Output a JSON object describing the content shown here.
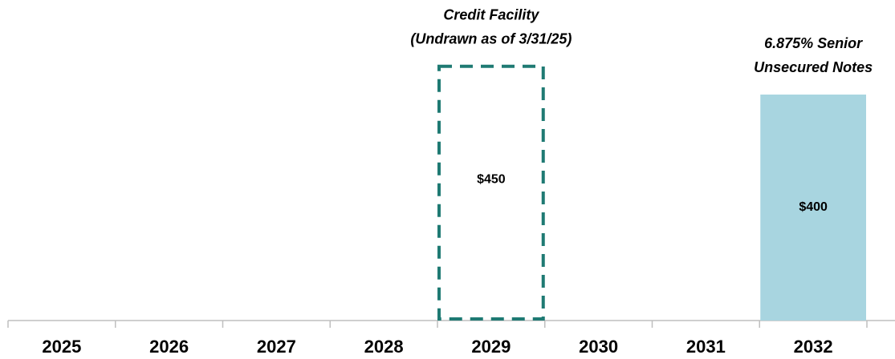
{
  "chart_data": {
    "type": "bar",
    "categories": [
      "2025",
      "2026",
      "2027",
      "2028",
      "2029",
      "2030",
      "2031",
      "2032"
    ],
    "series": [
      {
        "name": [
          "Credit Facility",
          "(Undrawn as of 3/31/25)"
        ],
        "color": "#1f7a73",
        "style": "dashed",
        "values": [
          null,
          null,
          null,
          null,
          450,
          null,
          null,
          null
        ],
        "value_labels": [
          null,
          null,
          null,
          null,
          "$450",
          null,
          null,
          null
        ]
      },
      {
        "name": [
          "6.875% Senior",
          "Unsecured Notes"
        ],
        "color": "#a8d5e0",
        "style": "filled",
        "values": [
          null,
          null,
          null,
          null,
          null,
          null,
          null,
          400
        ],
        "value_labels": [
          null,
          null,
          null,
          null,
          null,
          null,
          null,
          "$400"
        ]
      }
    ]
  }
}
